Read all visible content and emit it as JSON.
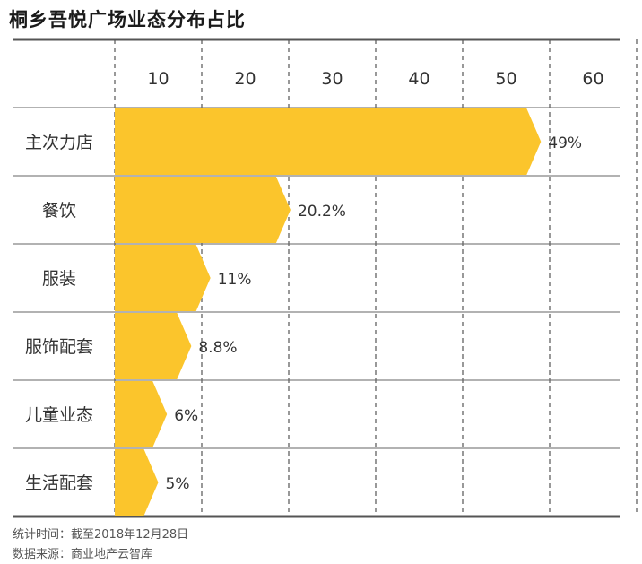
{
  "chart_title": "桐乡吾悦广场业态分布占比",
  "chart_data": {
    "type": "bar",
    "orientation": "horizontal",
    "title": "桐乡吾悦广场业态分布占比",
    "categories": [
      "主次力店",
      "餐饮",
      "服装",
      "服饰配套",
      "儿童业态",
      "生活配套"
    ],
    "values": [
      49,
      20.2,
      11,
      8.8,
      6,
      5
    ],
    "value_labels": [
      "49%",
      "20.2%",
      "11%",
      "8.8%",
      "6%",
      "5%"
    ],
    "x_ticks": [
      10,
      20,
      30,
      40,
      50,
      60
    ],
    "xlim": [
      0,
      60
    ],
    "xlabel": "",
    "ylabel": "",
    "grid": true,
    "bar_color": "#FBC52C"
  },
  "footer": {
    "date": "统计时间：截至2018年12月28日",
    "source": "数据来源：商业地产云智库"
  }
}
